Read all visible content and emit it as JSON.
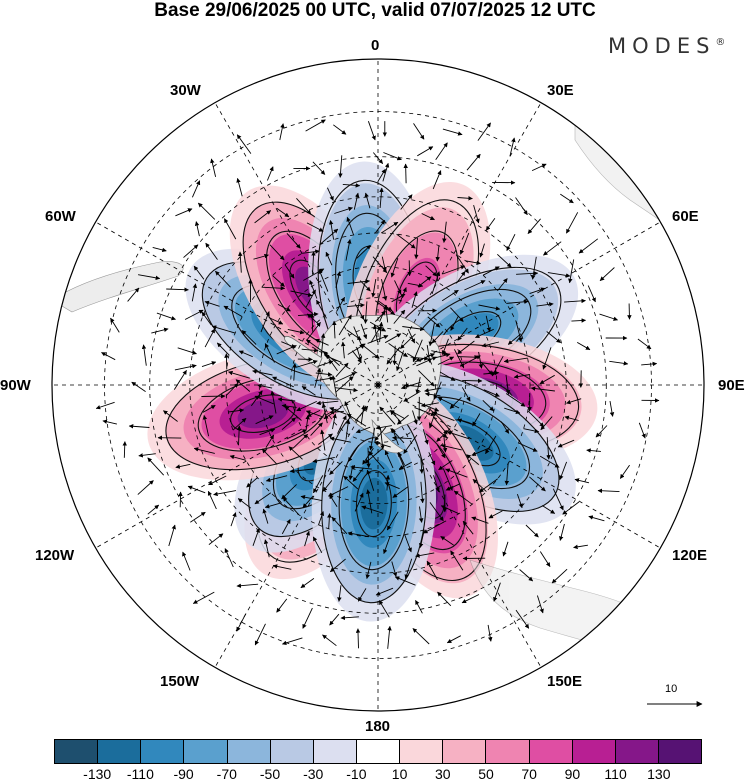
{
  "title": "Base 29/06/2025 00 UTC, valid 07/07/2025 12 UTC",
  "logo": "MODES",
  "logo_mark": "®",
  "longitude_labels": {
    "lon_0": "0",
    "lon_30e": "30E",
    "lon_60e": "60E",
    "lon_90e": "90E",
    "lon_120e": "120E",
    "lon_150e": "150E",
    "lon_180": "180",
    "lon_150w": "150W",
    "lon_120w": "120W",
    "lon_90w": "90W",
    "lon_60w": "60W",
    "lon_30w": "30W"
  },
  "vector_scale_value": "10",
  "colorbar": {
    "colors": [
      "#1e4f6e",
      "#1b6d9c",
      "#3188bd",
      "#5aa0ce",
      "#8cb6dc",
      "#b9c9e4",
      "#dcdff0",
      "#ffffff",
      "#fad7db",
      "#f6b1c3",
      "#ef84b1",
      "#df4ea3",
      "#b81f93",
      "#851789",
      "#561273"
    ],
    "tick_labels": [
      "-130",
      "-110",
      "-90",
      "-70",
      "-50",
      "-30",
      "-10",
      "10",
      "30",
      "50",
      "70",
      "90",
      "110",
      "130"
    ]
  },
  "anomaly_centers": [
    {
      "sign": "positive",
      "lon": 211,
      "lat": 55,
      "level": 4
    },
    {
      "sign": "negative",
      "lon": 219,
      "lat": 60,
      "level": 5
    },
    {
      "sign": "positive",
      "lon": 256,
      "lat": 50,
      "level": 5
    },
    {
      "sign": "negative",
      "lon": 302,
      "lat": 55,
      "level": 5
    },
    {
      "sign": "positive",
      "lon": 326,
      "lat": 51,
      "level": 5
    },
    {
      "sign": "negative",
      "lon": 356,
      "lat": 54,
      "level": 4
    },
    {
      "sign": "positive",
      "lon": 23,
      "lat": 56,
      "level": 3
    },
    {
      "sign": "negative",
      "lon": 61,
      "lat": 54,
      "level": 4
    },
    {
      "sign": "positive",
      "lon": 97,
      "lat": 55,
      "level": 6
    },
    {
      "sign": "negative",
      "lon": 122,
      "lat": 53,
      "level": 5
    },
    {
      "sign": "positive",
      "lon": 156,
      "lat": 52,
      "level": 6
    },
    {
      "sign": "negative",
      "lon": 182,
      "lat": 50,
      "level": 5
    }
  ]
}
